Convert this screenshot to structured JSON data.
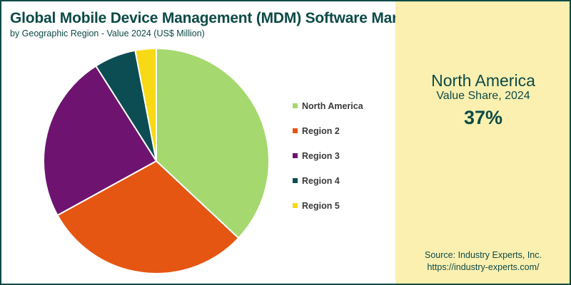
{
  "header": {
    "title": "Global Mobile Device Management (MDM) Software Market",
    "subtitle": "by Geographic Region - Value 2024 (US$ Million)"
  },
  "chart_data": {
    "type": "pie",
    "title": "Global Mobile Device Management (MDM) Software Market",
    "subtitle": "by Geographic Region - Value 2024 (US$ Million)",
    "categories": [
      "North America",
      "Region 2",
      "Region 3",
      "Region 4",
      "Region 5"
    ],
    "values": [
      37,
      30,
      24,
      6,
      3
    ],
    "colors": [
      "#a5d86e",
      "#e55613",
      "#6e1470",
      "#0b4d52",
      "#f7d916"
    ],
    "legend_position": "right",
    "start_angle_deg": 0,
    "direction": "clockwise"
  },
  "highlight": {
    "region": "North America",
    "caption": "Value Share, 2024",
    "value": "37%"
  },
  "source": {
    "line1": "Source: Industry Experts, Inc.",
    "line2": "https://industry-experts.com/"
  }
}
